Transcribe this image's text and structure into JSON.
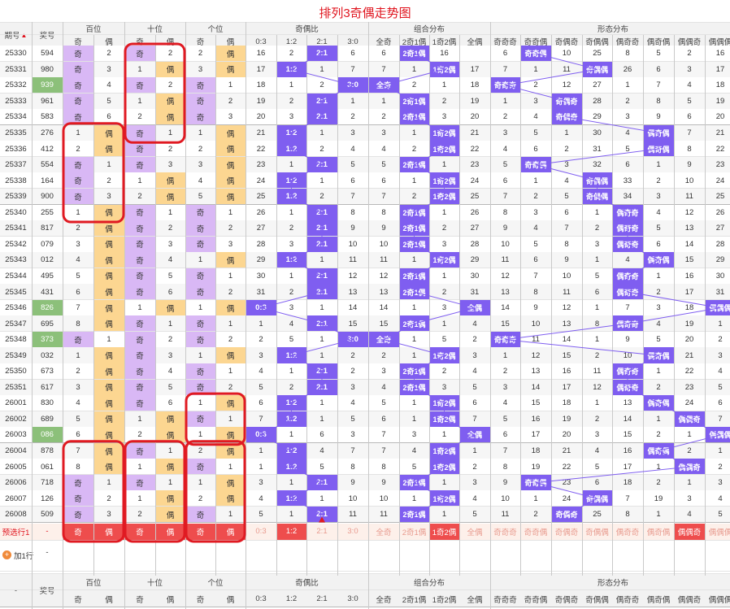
{
  "title": "排列3奇偶走势图",
  "header": {
    "issue": "期号",
    "prize": "奖号",
    "groups": [
      "百位",
      "十位",
      "个位",
      "奇偶比",
      "组合分布",
      "形态分布"
    ],
    "sub_pos": [
      "奇",
      "偶"
    ],
    "sub_ratio": [
      "0:3",
      "1:2",
      "2:1",
      "3:0"
    ],
    "sub_combo": [
      "全奇",
      "2奇1偶",
      "1奇2偶",
      "全偶"
    ],
    "sub_shape": [
      "奇奇奇",
      "奇奇偶",
      "奇偶奇",
      "奇偶偶",
      "偶奇奇",
      "偶奇偶",
      "偶偶奇",
      "偶偶偶"
    ]
  },
  "colors": {
    "odd_bg": "#d9b8f5",
    "even_bg": "#fcd691",
    "hit_bg": "#7f5ef0",
    "prize_hi": "#8cc07a",
    "ring": "#e01a22",
    "predict_hi": "#ee4d4d",
    "line": "#7f5ef0"
  },
  "chart_data": {
    "type": "table",
    "title": "排列3奇偶走势图",
    "columns": [
      "百位 奇/偶",
      "十位 奇/偶",
      "个位 奇/偶",
      "奇偶比",
      "组合分布",
      "形态分布"
    ],
    "rows": [
      {
        "issue": "25330",
        "prize": "594",
        "omit": [
          [
            2
          ],
          [
            2
          ],
          [
            2
          ],
          [
            16,
            2,
            6
          ],
          [
            6,
            16
          ],
          [
            6,
            10,
            25,
            8,
            5,
            2,
            16
          ]
        ]
      },
      {
        "issue": "25331",
        "prize": "980",
        "omit": [
          [
            3
          ],
          [
            1
          ],
          [
            3
          ],
          [
            17,
            1,
            7
          ],
          [
            7,
            1,
            17
          ],
          [
            7,
            1,
            11,
            26,
            6,
            3,
            17
          ]
        ]
      },
      {
        "issue": "25332",
        "prize": "939",
        "omit": [
          [
            4
          ],
          [
            2
          ],
          [
            1
          ],
          [
            18,
            1,
            2
          ],
          [
            2,
            1,
            18
          ],
          [
            2,
            12,
            27,
            1,
            7,
            4,
            18
          ]
        ]
      },
      {
        "issue": "25333",
        "prize": "961",
        "omit": [
          [
            5
          ],
          [
            1
          ],
          [
            2
          ],
          [
            19,
            2,
            1
          ],
          [
            1,
            2,
            19
          ],
          [
            1,
            3,
            28,
            2,
            8,
            5,
            19
          ]
        ]
      },
      {
        "issue": "25334",
        "prize": "583",
        "omit": [
          [
            6
          ],
          [
            2
          ],
          [
            3
          ],
          [
            20,
            3,
            2
          ],
          [
            2,
            3,
            20
          ],
          [
            2,
            4,
            29,
            3,
            9,
            6,
            20
          ]
        ]
      },
      {
        "issue": "25335",
        "prize": "276",
        "omit": [
          [
            1
          ],
          [
            1
          ],
          [
            1
          ],
          [
            21,
            1,
            3
          ],
          [
            3,
            1,
            21
          ],
          [
            3,
            5,
            1,
            30,
            4,
            7,
            21
          ]
        ]
      },
      {
        "issue": "25336",
        "prize": "412",
        "omit": [
          [
            2
          ],
          [
            2
          ],
          [
            2
          ],
          [
            22,
            2,
            4
          ],
          [
            4,
            2,
            22
          ],
          [
            4,
            6,
            2,
            31,
            5,
            8,
            22
          ]
        ]
      },
      {
        "issue": "25337",
        "prize": "554",
        "omit": [
          [
            1
          ],
          [
            3
          ],
          [
            3
          ],
          [
            23,
            1,
            5
          ],
          [
            5,
            1,
            23
          ],
          [
            5,
            3,
            32,
            6,
            1,
            9,
            23
          ]
        ]
      },
      {
        "issue": "25338",
        "prize": "164",
        "omit": [
          [
            2
          ],
          [
            1
          ],
          [
            4
          ],
          [
            24,
            1,
            6
          ],
          [
            6,
            1,
            24
          ],
          [
            6,
            1,
            4,
            33,
            2,
            10,
            24
          ]
        ]
      },
      {
        "issue": "25339",
        "prize": "900",
        "omit": [
          [
            3
          ],
          [
            2
          ],
          [
            5
          ],
          [
            25,
            2,
            7
          ],
          [
            7,
            2,
            25
          ],
          [
            7,
            2,
            5,
            34,
            3,
            11,
            25
          ]
        ]
      },
      {
        "issue": "25340",
        "prize": "255",
        "omit": [
          [
            1
          ],
          [
            1
          ],
          [
            1
          ],
          [
            26,
            1,
            8
          ],
          [
            8,
            1,
            26
          ],
          [
            8,
            3,
            6,
            1,
            4,
            12,
            26
          ]
        ]
      },
      {
        "issue": "25341",
        "prize": "817",
        "omit": [
          [
            2
          ],
          [
            2
          ],
          [
            2
          ],
          [
            27,
            2,
            9
          ],
          [
            9,
            2,
            27
          ],
          [
            9,
            4,
            7,
            2,
            5,
            13,
            27
          ]
        ]
      },
      {
        "issue": "25342",
        "prize": "079",
        "omit": [
          [
            3
          ],
          [
            3
          ],
          [
            3
          ],
          [
            28,
            3,
            10
          ],
          [
            10,
            3,
            28
          ],
          [
            10,
            5,
            8,
            3,
            6,
            14,
            28
          ]
        ]
      },
      {
        "issue": "25343",
        "prize": "012",
        "omit": [
          [
            4
          ],
          [
            4
          ],
          [
            1
          ],
          [
            29,
            1,
            11
          ],
          [
            11,
            1,
            29
          ],
          [
            11,
            6,
            9,
            1,
            4,
            15,
            29
          ]
        ]
      },
      {
        "issue": "25344",
        "prize": "495",
        "omit": [
          [
            5
          ],
          [
            5
          ],
          [
            1
          ],
          [
            30,
            1,
            12
          ],
          [
            12,
            1,
            30
          ],
          [
            12,
            7,
            10,
            5,
            1,
            16,
            30
          ]
        ]
      },
      {
        "issue": "25345",
        "prize": "431",
        "omit": [
          [
            6
          ],
          [
            6
          ],
          [
            2
          ],
          [
            31,
            2,
            13
          ],
          [
            13,
            2,
            31
          ],
          [
            13,
            8,
            11,
            6,
            2,
            17,
            31
          ]
        ]
      },
      {
        "issue": "25346",
        "prize": "826",
        "omit": [
          [
            7
          ],
          [
            1
          ],
          [
            1
          ],
          [
            3,
            1,
            14
          ],
          [
            14,
            1,
            3
          ],
          [
            14,
            9,
            12,
            1,
            7,
            3,
            18
          ]
        ]
      },
      {
        "issue": "25347",
        "prize": "695",
        "omit": [
          [
            8
          ],
          [
            1
          ],
          [
            1
          ],
          [
            1,
            4,
            15
          ],
          [
            15,
            1,
            4
          ],
          [
            15,
            10,
            13,
            8,
            4,
            19,
            1
          ]
        ]
      },
      {
        "issue": "25348",
        "prize": "373",
        "omit": [
          [
            1
          ],
          [
            2
          ],
          [
            2
          ],
          [
            2,
            5,
            1
          ],
          [
            1,
            5,
            2
          ],
          [
            11,
            14,
            1,
            9,
            5,
            20,
            2
          ]
        ]
      },
      {
        "issue": "25349",
        "prize": "032",
        "omit": [
          [
            1
          ],
          [
            3
          ],
          [
            1
          ],
          [
            3,
            1,
            2
          ],
          [
            2,
            1,
            3
          ],
          [
            1,
            12,
            15,
            2,
            10,
            21,
            3
          ]
        ]
      },
      {
        "issue": "25350",
        "prize": "673",
        "omit": [
          [
            2
          ],
          [
            4
          ],
          [
            1
          ],
          [
            4,
            1,
            2
          ],
          [
            3,
            2,
            4
          ],
          [
            2,
            13,
            16,
            11,
            1,
            22,
            4
          ]
        ]
      },
      {
        "issue": "25351",
        "prize": "617",
        "omit": [
          [
            3
          ],
          [
            5
          ],
          [
            2
          ],
          [
            5,
            2,
            3
          ],
          [
            4,
            3,
            5
          ],
          [
            3,
            14,
            17,
            12,
            2,
            23,
            5
          ]
        ]
      },
      {
        "issue": "26001",
        "prize": "830",
        "omit": [
          [
            4
          ],
          [
            6
          ],
          [
            1
          ],
          [
            6,
            1,
            4
          ],
          [
            5,
            1,
            6
          ],
          [
            4,
            15,
            18,
            1,
            13,
            24,
            6
          ]
        ]
      },
      {
        "issue": "26002",
        "prize": "689",
        "omit": [
          [
            5
          ],
          [
            1
          ],
          [
            1
          ],
          [
            7,
            1,
            5
          ],
          [
            6,
            1,
            7
          ],
          [
            5,
            16,
            19,
            2,
            14,
            1,
            7
          ]
        ]
      },
      {
        "issue": "26003",
        "prize": "086",
        "omit": [
          [
            6
          ],
          [
            2
          ],
          [
            1
          ],
          [
            1,
            6,
            3
          ],
          [
            7,
            3,
            1
          ],
          [
            6,
            17,
            20,
            3,
            15,
            2,
            1
          ]
        ]
      },
      {
        "issue": "26004",
        "prize": "878",
        "omit": [
          [
            7
          ],
          [
            1
          ],
          [
            2
          ],
          [
            1,
            4,
            7
          ],
          [
            7,
            4,
            1
          ],
          [
            7,
            18,
            21,
            4,
            16,
            2,
            1
          ]
        ]
      },
      {
        "issue": "26005",
        "prize": "061",
        "omit": [
          [
            8
          ],
          [
            1
          ],
          [
            1
          ],
          [
            1,
            5,
            8
          ],
          [
            8,
            5,
            2
          ],
          [
            8,
            19,
            22,
            5,
            17,
            1,
            2
          ]
        ]
      },
      {
        "issue": "26006",
        "prize": "718",
        "omit": [
          [
            1
          ],
          [
            1
          ],
          [
            1
          ],
          [
            3,
            1,
            9
          ],
          [
            9,
            1,
            3
          ],
          [
            9,
            23,
            6,
            18,
            2,
            1,
            3
          ]
        ]
      },
      {
        "issue": "26007",
        "prize": "126",
        "omit": [
          [
            2
          ],
          [
            1
          ],
          [
            2
          ],
          [
            4,
            1,
            10
          ],
          [
            10,
            1,
            4
          ],
          [
            10,
            1,
            24,
            7,
            19,
            3,
            4
          ]
        ]
      },
      {
        "issue": "26008",
        "prize": "509",
        "omit": [
          [
            3
          ],
          [
            2
          ],
          [
            1
          ],
          [
            5,
            1,
            11
          ],
          [
            11,
            1,
            5
          ],
          [
            11,
            2,
            25,
            8,
            1,
            4,
            5
          ]
        ]
      }
    ],
    "predict_row": {
      "label": "预选行1",
      "prize": "-",
      "cells": [
        "奇",
        "偶",
        "奇",
        "偶",
        "奇",
        "偶",
        "0:3",
        "1:2",
        "2:1",
        "3:0",
        "全奇",
        "2奇1偶",
        "1奇2偶",
        "全偶",
        "奇奇奇",
        "奇奇偶",
        "奇偶奇",
        "奇偶偶",
        "偶奇奇",
        "偶奇偶",
        "偶偶奇",
        "偶偶偶"
      ],
      "selected": [
        0,
        1,
        2,
        3,
        4,
        5,
        7,
        12,
        20
      ]
    },
    "add_row": {
      "label": "加1行",
      "prize": "-"
    },
    "footer_issue": "-"
  }
}
